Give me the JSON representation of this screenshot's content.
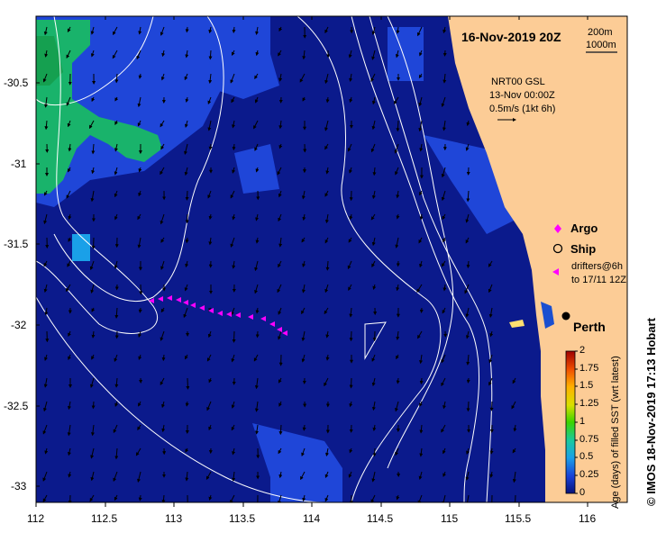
{
  "title": "16-Nov-2019 20Z",
  "scale_labels": [
    "200m",
    "1000m"
  ],
  "current_info": [
    "NRT00 GSL",
    "13-Nov 00:00Z",
    "0.5m/s (1kt 6h)"
  ],
  "legend": {
    "argo": "Argo",
    "ship": "Ship",
    "drifters_line1": "drifters@6h",
    "drifters_line2": "to 17/11 12Z"
  },
  "city": "Perth",
  "colorbar": {
    "label": "Age (days) of filled SST (wrt latest)",
    "ticks": [
      "2",
      "1.75",
      "1.5",
      "1.25",
      "1",
      "0.75",
      "0.5",
      "0.25",
      "0"
    ]
  },
  "credit": "© IMOS 18-Nov-2019 17:13 Hobart",
  "axes": {
    "lat_ticks": [
      "-30.5",
      "-31",
      "-31.5",
      "-32",
      "-32.5",
      "-33"
    ],
    "lon_ticks": [
      "112",
      "112.5",
      "113",
      "113.5",
      "114",
      "114.5",
      "115",
      "115.5",
      "116"
    ],
    "lon_range": [
      112,
      116.3
    ],
    "lat_range": [
      -33.1,
      -30.1
    ]
  },
  "colors": {
    "ocean": "#0b1a8c",
    "ocean_light": "#1f46d8",
    "land": "#fccc96",
    "green": "#19b36b",
    "argo": "#ff00ff"
  }
}
